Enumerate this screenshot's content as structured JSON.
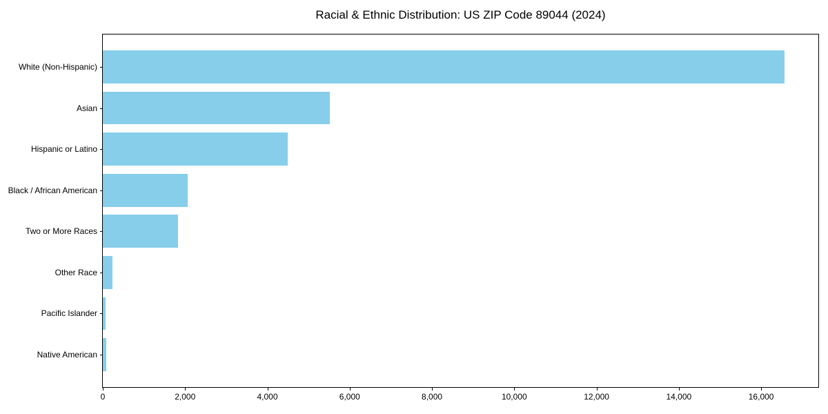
{
  "title": "Racial & Ethnic Distribution: US ZIP Code 89044 (2024)",
  "chart_data": {
    "type": "bar",
    "orientation": "horizontal",
    "title": "Racial & Ethnic Distribution: US ZIP Code 89044 (2024)",
    "categories": [
      "White (Non-Hispanic)",
      "Asian",
      "Hispanic or Latino",
      "Black / African American",
      "Two or More Races",
      "Other Race",
      "Pacific Islander",
      "Native American"
    ],
    "values": [
      16565,
      5520,
      4500,
      2055,
      1820,
      240,
      70,
      85
    ],
    "xlabel": "",
    "ylabel": "",
    "xlim": [
      0,
      17390
    ],
    "xticks": [
      0,
      2000,
      4000,
      6000,
      8000,
      10000,
      12000,
      14000,
      16000
    ],
    "xtick_labels": [
      "0",
      "2,000",
      "4,000",
      "6,000",
      "8,000",
      "10,000",
      "12,000",
      "14,000",
      "16,000"
    ],
    "bar_color": "#87CEEB",
    "grid": false,
    "legend": null,
    "bar_height_fraction": 0.8
  }
}
